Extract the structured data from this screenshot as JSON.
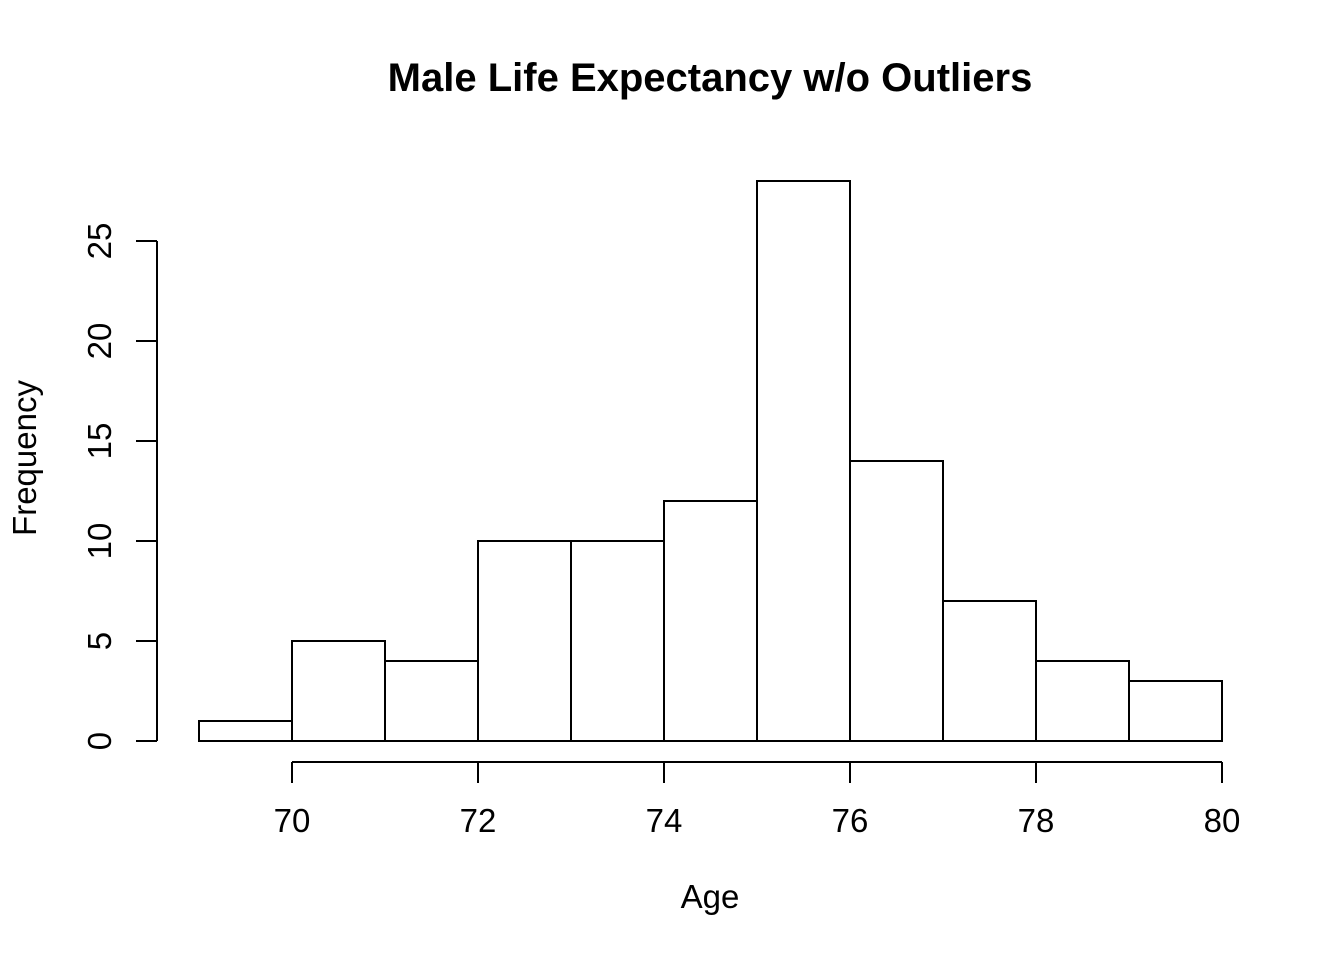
{
  "figure": {
    "title": "Male Life Expectancy w/o Outliers",
    "xlabel": "Age",
    "ylabel": "Frequency"
  },
  "chart_data": {
    "type": "bar",
    "subtype": "histogram",
    "title": "Male Life Expectancy w/o Outliers",
    "xlabel": "Age",
    "ylabel": "Frequency",
    "bin_edges": [
      69,
      70,
      71,
      72,
      73,
      74,
      75,
      76,
      77,
      78,
      79,
      80
    ],
    "counts": [
      1,
      5,
      4,
      10,
      10,
      12,
      28,
      14,
      7,
      4,
      3
    ],
    "x_ticks": [
      70,
      72,
      74,
      76,
      78,
      80
    ],
    "y_ticks": [
      0,
      5,
      10,
      15,
      20,
      25
    ],
    "xlim": [
      69,
      80
    ],
    "ylim": [
      0,
      28
    ],
    "grid": false,
    "legend": null,
    "bar_fill": "#ffffff",
    "line_color": "#000000",
    "background": "#ffffff"
  }
}
